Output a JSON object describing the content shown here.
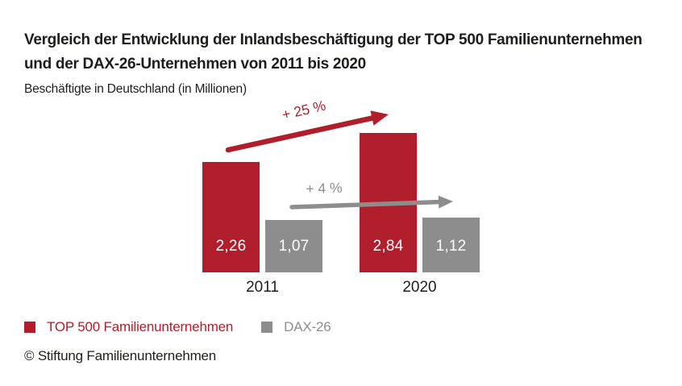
{
  "header": {
    "title": "Vergleich der Entwicklung der Inlandsbeschäftigung der TOP 500 Familienunternehmen und der DAX-26-Unternehmen von 2011 bis 2020",
    "subtitle": "Beschäftigte in Deutschland (in Millionen)"
  },
  "chart_data": {
    "type": "bar",
    "title": "Vergleich der Entwicklung der Inlandsbeschäftigung der TOP 500 Familienunternehmen und der DAX-26-Unternehmen von 2011 bis 2020",
    "ylabel": "Beschäftigte in Deutschland (in Millionen)",
    "xlabel": "",
    "categories": [
      "2011",
      "2020"
    ],
    "series": [
      {
        "name": "TOP 500 Familienunternehmen",
        "key": "top500",
        "values": [
          2.26,
          2.84
        ],
        "value_labels": [
          "2,26",
          "2,84"
        ],
        "color": "#B11E2B",
        "trend_label": "+ 25 %",
        "trend_percent": 25
      },
      {
        "name": "DAX-26",
        "key": "dax26",
        "values": [
          1.07,
          1.12
        ],
        "value_labels": [
          "1,07",
          "1,12"
        ],
        "color": "#8D8D8D",
        "trend_label": "+ 4 %",
        "trend_percent": 4
      }
    ],
    "ylim": [
      0,
      3
    ],
    "grid": false,
    "axes_visible": false,
    "value_labels_position": "inside-bottom",
    "legend_position": "bottom-left"
  },
  "legend": {
    "items": [
      {
        "label": "TOP 500 Familienunternehmen",
        "color": "#B11E2B"
      },
      {
        "label": "DAX-26",
        "color": "#8D8D8D"
      }
    ]
  },
  "footer": {
    "copyright": "© Stiftung Familienunternehmen"
  },
  "colors": {
    "accent_red": "#B11E2B",
    "gray": "#8D8D8D",
    "text_dark": "#1D1D1B",
    "background": "#FFFFFF",
    "value_text": "#FFFFFF"
  }
}
